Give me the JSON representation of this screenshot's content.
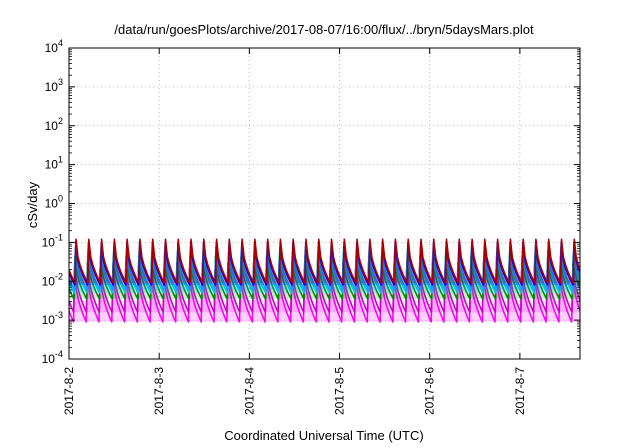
{
  "chart_data": {
    "type": "line",
    "title": "/data/run/goesPlots/archive/2017-08-07/16:00/flux/../bryn/5daysMars.plot",
    "xlabel": "Coordinated Universal Time (UTC)",
    "ylabel": "cSv/day",
    "y_scale": "log",
    "ylim": [
      0.0001,
      10000
    ],
    "y_ticks": [
      {
        "base": "10",
        "exp": "-4",
        "value": 0.0001
      },
      {
        "base": "10",
        "exp": "-3",
        "value": 0.001
      },
      {
        "base": "10",
        "exp": "-2",
        "value": 0.01
      },
      {
        "base": "10",
        "exp": "-1",
        "value": 0.1
      },
      {
        "base": "10",
        "exp": "0",
        "value": 1
      },
      {
        "base": "10",
        "exp": "1",
        "value": 10
      },
      {
        "base": "10",
        "exp": "2",
        "value": 100
      },
      {
        "base": "10",
        "exp": "3",
        "value": 1000
      },
      {
        "base": "10",
        "exp": "4",
        "value": 10000
      }
    ],
    "x_ticks": [
      "2017-8-2",
      "2017-8-3",
      "2017-8-4",
      "2017-8-5",
      "2017-8-6",
      "2017-8-7"
    ],
    "xlim": [
      "2017-08-02T00:00",
      "2017-08-07T16:00"
    ],
    "cycle_hours": 3.4,
    "grid": true,
    "series": [
      {
        "color": "#ff00ff",
        "peak": 0.02,
        "trough": 0.0009
      },
      {
        "color": "#cc00cc",
        "peak": 0.03,
        "trough": 0.0016
      },
      {
        "color": "#008800",
        "peak": 0.045,
        "trough": 0.0035
      },
      {
        "color": "#00c8c8",
        "peak": 0.06,
        "trough": 0.005
      },
      {
        "color": "#00aaff",
        "peak": 0.075,
        "trough": 0.006
      },
      {
        "color": "#0000ff",
        "peak": 0.1,
        "trough": 0.008
      },
      {
        "color": "#aa0000",
        "peak": 0.12,
        "trough": 0.009
      }
    ]
  }
}
